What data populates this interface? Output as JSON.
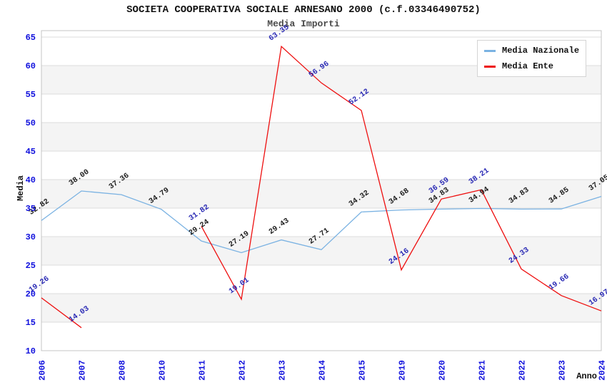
{
  "header": {
    "title": "SOCIETA COOPERATIVA SOCIALE ARNESANO 2000 (c.f.03346490752)",
    "subtitle": "Media Importi"
  },
  "chart_data": {
    "type": "line",
    "title": "SOCIETA COOPERATIVA SOCIALE ARNESANO 2000 (c.f.03346490752)",
    "subtitle": "Media Importi",
    "xlabel": "Anno",
    "ylabel": "Media",
    "ylim": [
      10,
      66
    ],
    "yticks": [
      10,
      15,
      20,
      25,
      30,
      35,
      40,
      45,
      50,
      55,
      60,
      65
    ],
    "grid": true,
    "legend_position": "top-right",
    "categories": [
      "2006",
      "2007",
      "2008",
      "2010",
      "2011",
      "2012",
      "2013",
      "2014",
      "2015",
      "2019",
      "2020",
      "2021",
      "2022",
      "2023",
      "2024"
    ],
    "series": [
      {
        "name": "Media Nazionale",
        "color": "#7ab2e2",
        "label_color": "#1c1c1c",
        "values": [
          32.82,
          38.0,
          37.36,
          34.79,
          29.24,
          27.19,
          29.43,
          27.71,
          34.32,
          34.68,
          34.83,
          34.94,
          34.83,
          34.85,
          37.05
        ]
      },
      {
        "name": "Media Ente",
        "color": "#ee0f0f",
        "label_color": "#2828b4",
        "values": [
          19.26,
          14.03,
          null,
          null,
          31.82,
          19.01,
          63.35,
          56.96,
          52.12,
          24.16,
          36.59,
          38.21,
          24.33,
          19.66,
          16.97
        ]
      }
    ],
    "styles": {
      "tick_color": "#1010dd",
      "axis_title_color": "#111111",
      "band_color": "#f4f4f4",
      "grid_color": "#dcdcdc",
      "border_color": "#c4c4c4"
    }
  }
}
